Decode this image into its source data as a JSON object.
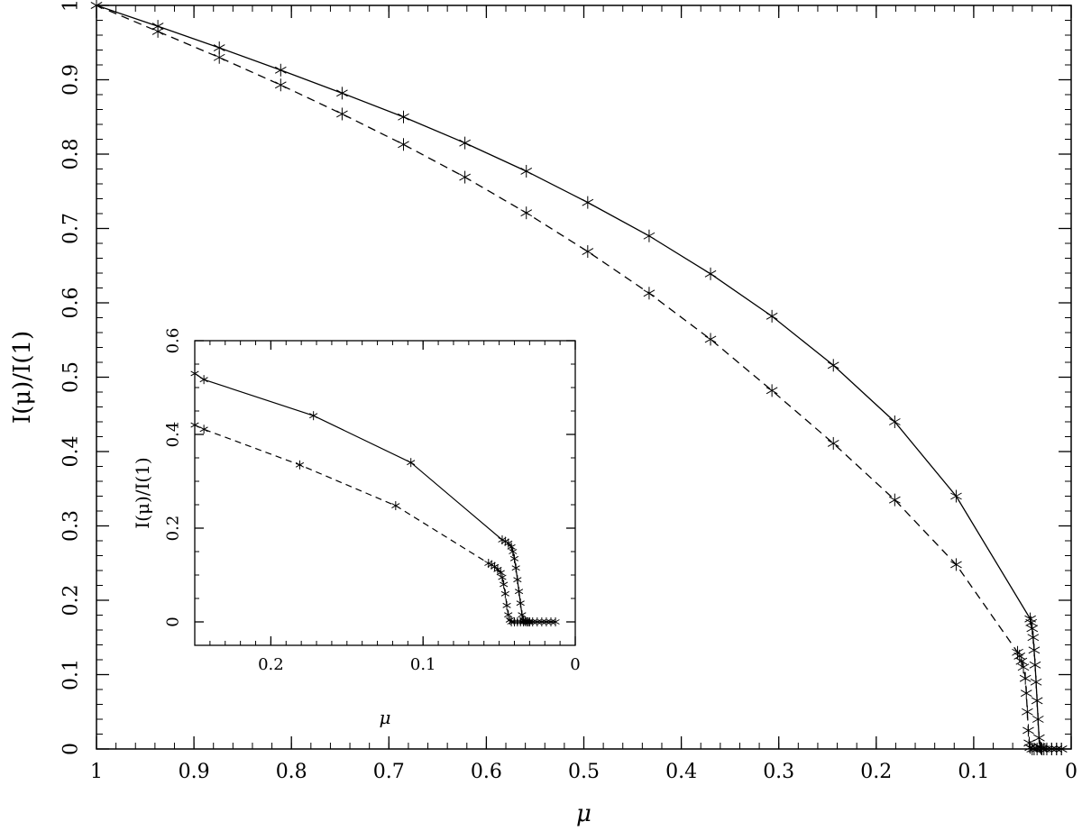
{
  "chart_data": [
    {
      "type": "line",
      "xlabel": "μ",
      "ylabel": "I(μ)/I(1)",
      "xlim": [
        1,
        0
      ],
      "ylim": [
        0,
        1
      ],
      "x_ticks": [
        1,
        0.9,
        0.8,
        0.7,
        0.6,
        0.5,
        0.4,
        0.3,
        0.2,
        0.1,
        0
      ],
      "x_tick_labels": [
        "1",
        "0.9",
        "0.8",
        "0.7",
        "0.6",
        "0.5",
        "0.4",
        "0.3",
        "0.2",
        "0.1",
        "0"
      ],
      "y_ticks": [
        0,
        0.1,
        0.2,
        0.3,
        0.4,
        0.5,
        0.6,
        0.7,
        0.8,
        0.9,
        1
      ],
      "y_tick_labels": [
        "0",
        "0.1",
        "0.2",
        "0.3",
        "0.4",
        "0.5",
        "0.6",
        "0.7",
        "0.8",
        "0.9",
        "1"
      ],
      "grid": false,
      "series": [
        {
          "line_style": "solid",
          "marker": "asterisk",
          "x": [
            1.0,
            0.937,
            0.874,
            0.811,
            0.748,
            0.685,
            0.622,
            0.559,
            0.496,
            0.433,
            0.37,
            0.307,
            0.244,
            0.181,
            0.118,
            0.042,
            0.041,
            0.04,
            0.039,
            0.038,
            0.037,
            0.036,
            0.035,
            0.034,
            0.033,
            0.032,
            0.031,
            0.03,
            0.028,
            0.025,
            0.02,
            0.015,
            0.01
          ],
          "y": [
            1.0,
            0.972,
            0.943,
            0.913,
            0.882,
            0.85,
            0.815,
            0.777,
            0.735,
            0.69,
            0.639,
            0.582,
            0.516,
            0.44,
            0.34,
            0.175,
            0.17,
            0.162,
            0.15,
            0.133,
            0.113,
            0.09,
            0.065,
            0.04,
            0.015,
            0.003,
            0.001,
            0.0,
            0.0,
            0.0,
            0.0,
            0.0,
            0.0
          ]
        },
        {
          "line_style": "dashed",
          "marker": "asterisk",
          "x": [
            1.0,
            0.937,
            0.874,
            0.811,
            0.748,
            0.685,
            0.622,
            0.559,
            0.496,
            0.433,
            0.37,
            0.307,
            0.244,
            0.181,
            0.118,
            0.055,
            0.053,
            0.051,
            0.049,
            0.047,
            0.046,
            0.045,
            0.044,
            0.043,
            0.042,
            0.04,
            0.038,
            0.035,
            0.03,
            0.025,
            0.02,
            0.015,
            0.01
          ],
          "y": [
            1.0,
            0.965,
            0.93,
            0.893,
            0.854,
            0.813,
            0.769,
            0.721,
            0.669,
            0.613,
            0.551,
            0.482,
            0.411,
            0.335,
            0.248,
            0.13,
            0.125,
            0.118,
            0.11,
            0.095,
            0.075,
            0.05,
            0.025,
            0.008,
            0.002,
            0.0,
            0.0,
            0.0,
            0.0,
            0.0,
            0.0,
            0.0,
            0.0
          ]
        }
      ]
    },
    {
      "type": "line",
      "xlabel": "μ",
      "ylabel": "I(μ)/I(1)",
      "xlim": [
        0.25,
        0
      ],
      "ylim": [
        -0.05,
        0.6
      ],
      "x_ticks": [
        0.2,
        0.1,
        0
      ],
      "x_tick_labels": [
        "0.2",
        "0.1",
        "0"
      ],
      "y_ticks": [
        0,
        0.2,
        0.4,
        0.6
      ],
      "y_tick_labels": [
        "0",
        "0.2",
        "0.4",
        "0.6"
      ],
      "grid": false,
      "series": [
        {
          "line_style": "solid",
          "marker": "asterisk",
          "x": [
            0.25,
            0.244,
            0.172,
            0.108,
            0.048,
            0.046,
            0.044,
            0.042,
            0.041,
            0.04,
            0.039,
            0.038,
            0.037,
            0.036,
            0.035,
            0.034,
            0.033,
            0.032,
            0.031,
            0.03,
            0.028,
            0.025,
            0.022,
            0.019,
            0.016,
            0.013
          ],
          "y": [
            0.53,
            0.517,
            0.44,
            0.34,
            0.175,
            0.172,
            0.168,
            0.16,
            0.15,
            0.135,
            0.115,
            0.09,
            0.065,
            0.04,
            0.015,
            0.004,
            0.001,
            0.0,
            0.0,
            0.0,
            0.0,
            0.0,
            0.0,
            0.0,
            0.0,
            0.0
          ]
        },
        {
          "line_style": "dashed",
          "marker": "asterisk",
          "x": [
            0.25,
            0.244,
            0.181,
            0.118,
            0.057,
            0.055,
            0.053,
            0.051,
            0.049,
            0.048,
            0.047,
            0.046,
            0.045,
            0.044,
            0.043,
            0.042,
            0.04,
            0.038,
            0.036,
            0.034,
            0.032,
            0.03
          ],
          "y": [
            0.42,
            0.411,
            0.335,
            0.248,
            0.125,
            0.122,
            0.118,
            0.112,
            0.105,
            0.095,
            0.08,
            0.06,
            0.035,
            0.015,
            0.004,
            0.0,
            0.0,
            0.0,
            0.0,
            0.0,
            0.0,
            0.0
          ]
        }
      ]
    }
  ]
}
